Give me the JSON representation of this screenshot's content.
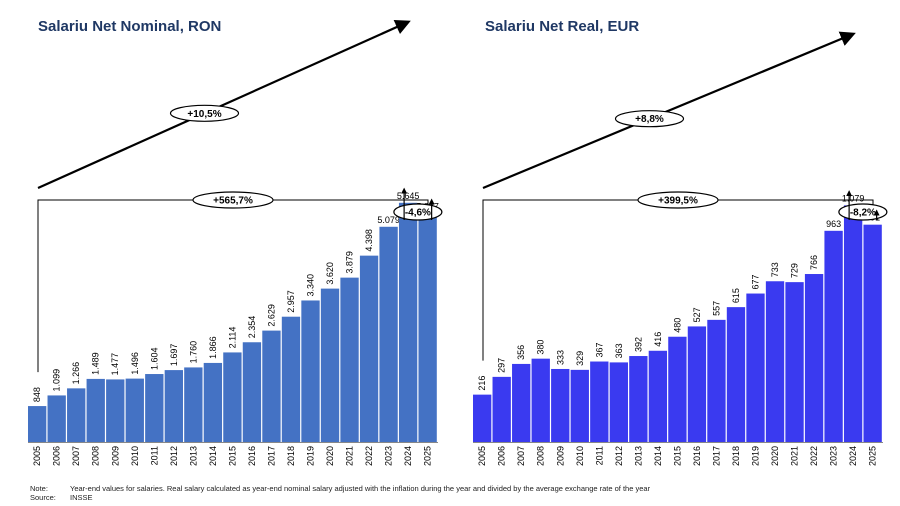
{
  "chart_data": [
    {
      "type": "bar",
      "title": "Salariu Net Nominal, RON",
      "categories": [
        "2005",
        "2006",
        "2007",
        "2008",
        "2009",
        "2010",
        "2011",
        "2012",
        "2013",
        "2014",
        "2015",
        "2016",
        "2017",
        "2018",
        "2019",
        "2020",
        "2021",
        "2022",
        "2023",
        "2024",
        "2025"
      ],
      "values": [
        848,
        1099,
        1266,
        1489,
        1477,
        1496,
        1604,
        1697,
        1760,
        1866,
        2114,
        2354,
        2629,
        2957,
        3340,
        3620,
        3879,
        4398,
        5079,
        5645,
        5387
      ],
      "value_labels": [
        "848",
        "1.099",
        "1.266",
        "1.489",
        "1.477",
        "1.496",
        "1.604",
        "1.697",
        "1.760",
        "1.866",
        "2.114",
        "2.354",
        "2.629",
        "2.957",
        "3.340",
        "3.620",
        "3.879",
        "4.398",
        "5.079",
        "5.645",
        "5.387"
      ],
      "ylim": [
        0,
        5900
      ],
      "color": "#4472c4",
      "annotations": {
        "trend": "+10,5%",
        "total": "+565,7%",
        "last": "-4,6%"
      }
    },
    {
      "type": "bar",
      "title": "Salariu Net Real, EUR",
      "categories": [
        "2005",
        "2006",
        "2007",
        "2008",
        "2009",
        "2010",
        "2011",
        "2012",
        "2013",
        "2014",
        "2015",
        "2016",
        "2017",
        "2018",
        "2019",
        "2020",
        "2021",
        "2022",
        "2023",
        "2024",
        "2025"
      ],
      "values": [
        216,
        297,
        356,
        380,
        333,
        329,
        367,
        363,
        392,
        416,
        480,
        527,
        557,
        615,
        677,
        733,
        729,
        766,
        963,
        1079,
        991
      ],
      "value_labels": [
        "216",
        "297",
        "356",
        "380",
        "333",
        "329",
        "367",
        "363",
        "392",
        "416",
        "480",
        "527",
        "557",
        "615",
        "677",
        "733",
        "729",
        "766",
        "963",
        "1.079",
        "991"
      ],
      "ylim": [
        0,
        1140
      ],
      "color": "#3a3af0",
      "annotations": {
        "trend": "+8,8%",
        "total": "+399,5%",
        "last": "-8,2%"
      }
    }
  ],
  "notes": {
    "note_label": "Note:",
    "note_text": "Year-end values for salaries. Real salary calculated as year-end nominal salary adjusted with the inflation during the year and divided by the average exchange rate of the year",
    "source_label": "Source:",
    "source_text": "INSSE"
  }
}
